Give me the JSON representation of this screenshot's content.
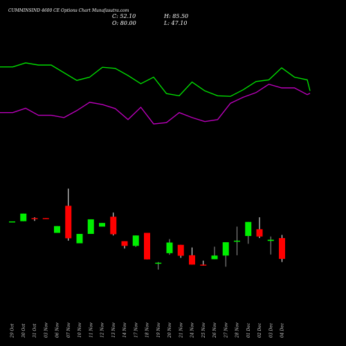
{
  "header": {
    "title": "CUMMINSIND 4600  CE Options  Chart Munafasutra.com",
    "close_label": "C: 52.10",
    "open_label": "O: 80.00",
    "high_label": "H: 85.50",
    "low_label": "L: 47.10"
  },
  "colors": {
    "background": "#000000",
    "upper_line": "#00dd00",
    "lower_line": "#bb00bb",
    "bull": "#00ee00",
    "bear": "#ff0000",
    "wick_up": "#999999",
    "wick_down": "#ffffff",
    "date_text": "#cccccc"
  },
  "chart_data": {
    "type": "candlestick",
    "categories": [
      "29 Oct",
      "30 Oct",
      "31 Oct",
      "03 Nov",
      "06 Nov",
      "07 Nov",
      "10 Nov",
      "11 Nov",
      "12 Nov",
      "13 Nov",
      "14 Nov",
      "17 Nov",
      "18 Nov",
      "19 Nov",
      "20 Nov",
      "21 Nov",
      "24 Nov",
      "25 Nov",
      "26 Nov",
      "27 Nov",
      "28 Nov",
      "01 Dec",
      "02 Dec",
      "03 Dec",
      "04 Dec"
    ],
    "candles": [
      {
        "open": 48.0,
        "close": 48.5,
        "high": 48.5,
        "low": 48.0
      },
      {
        "open": 48.7,
        "close": 56.0,
        "high": 56.0,
        "low": 48.7
      },
      {
        "open": 51.7,
        "close": 51.2,
        "high": 52.5,
        "low": 49.0
      },
      {
        "open": 51.7,
        "close": 51.3,
        "high": 51.7,
        "low": 51.3
      },
      {
        "open": 37.5,
        "close": 44.0,
        "high": 44.0,
        "low": 37.5
      },
      {
        "open": 63.5,
        "close": 32.3,
        "high": 80.0,
        "low": 30.0
      },
      {
        "open": 27.5,
        "close": 36.5,
        "high": 36.5,
        "low": 27.5
      },
      {
        "open": 36.5,
        "close": 50.5,
        "high": 50.5,
        "low": 36.5
      },
      {
        "open": 43.5,
        "close": 47.0,
        "high": 47.0,
        "low": 43.5
      },
      {
        "open": 53.0,
        "close": 36.2,
        "high": 57.0,
        "low": 35.0
      },
      {
        "open": 29.5,
        "close": 25.0,
        "high": 29.5,
        "low": 22.5
      },
      {
        "open": 25.0,
        "close": 35.0,
        "high": 35.0,
        "low": 24.0
      },
      {
        "open": 37.5,
        "close": 12.0,
        "high": 37.5,
        "low": 12.0
      },
      {
        "open": 8.0,
        "close": 8.8,
        "high": 9.5,
        "low": 2.2
      },
      {
        "open": 18.0,
        "close": 28.2,
        "high": 31.5,
        "low": 16.5
      },
      {
        "open": 26.0,
        "close": 15.5,
        "high": 26.0,
        "low": 13.5
      },
      {
        "open": 16.0,
        "close": 7.0,
        "high": 23.5,
        "low": 7.0
      },
      {
        "open": 7.0,
        "close": 6.5,
        "high": 10.8,
        "low": 6.0
      },
      {
        "open": 12.2,
        "close": 15.7,
        "high": 24.2,
        "low": 12.2
      },
      {
        "open": 15.7,
        "close": 28.5,
        "high": 28.5,
        "low": 5.0
      },
      {
        "open": 29.5,
        "close": 30.0,
        "high": 43.5,
        "low": 16.0
      },
      {
        "open": 34.5,
        "close": 48.0,
        "high": 48.0,
        "low": 27.0
      },
      {
        "open": 41.0,
        "close": 34.0,
        "high": 52.5,
        "low": 32.5
      },
      {
        "open": 29.7,
        "close": 30.9,
        "high": 34.0,
        "low": 16.7
      },
      {
        "open": 32.5,
        "close": 12.5,
        "high": 35.5,
        "low": 9.5
      }
    ],
    "ylim": [
      -18,
      95
    ],
    "upper_line": [
      86.8,
      86.8,
      90.5,
      88.5,
      88.5,
      81.5,
      74.5,
      77.5,
      86.5,
      85.5,
      79.0,
      71.5,
      77.5,
      62.5,
      60.5,
      73.0,
      65.0,
      60.5,
      60.0,
      66.0,
      73.5,
      75.0,
      86.0,
      77.5,
      75.0,
      65.0
    ],
    "lower_line": [
      30.5,
      30.5,
      37.0,
      26.5,
      26.5,
      23.0,
      33.5,
      46.0,
      42.5,
      36.5,
      20.0,
      38.5,
      13.5,
      15.5,
      30.5,
      23.0,
      17.0,
      20.0,
      44.5,
      53.5,
      60.5,
      73.0,
      67.5,
      67.5,
      57.5,
      59.5
    ],
    "upper_line_ylim": [
      -10,
      110
    ],
    "lower_line_ylim": [
      -60,
      137
    ],
    "grid": false,
    "legend": "none"
  }
}
